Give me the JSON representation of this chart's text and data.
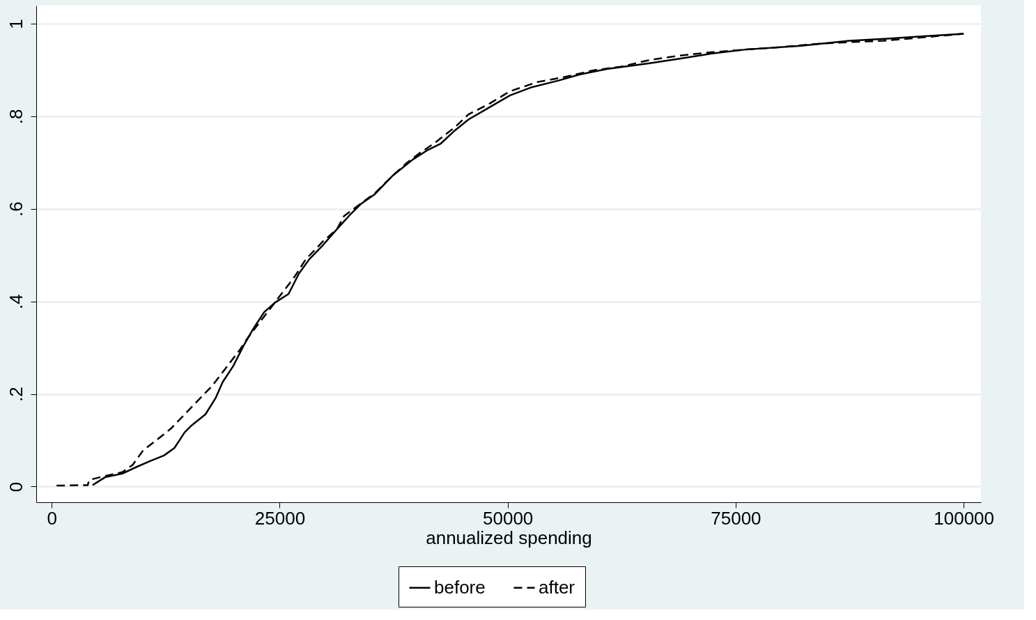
{
  "chart_data": {
    "type": "line",
    "xlabel": "annualized spending",
    "xlim": [
      -1700,
      101900
    ],
    "ylim": [
      -0.034,
      1.039
    ],
    "xticks": [
      0,
      25000,
      50000,
      75000,
      100000
    ],
    "yticks": [
      0,
      {
        "value": 0.2,
        "label": ".2"
      },
      {
        "value": 0.4,
        "label": ".4"
      },
      {
        "value": 0.6,
        "label": ".6"
      },
      {
        "value": 0.8,
        "label": ".8"
      },
      1
    ],
    "grid": "y",
    "legend": "bottom",
    "marker": "none",
    "series": [
      {
        "name": "before",
        "color": "#000000",
        "line_style": "solid",
        "x": [
          4480,
          5847,
          7745,
          9264,
          10782,
          12301,
          13440,
          14579,
          15338,
          16857,
          17996,
          18755,
          19894,
          21033,
          22172,
          23311,
          24450,
          25968,
          27107,
          28246,
          29765,
          31283,
          32802,
          33941,
          35460,
          37358,
          39636,
          41155,
          42673,
          44192,
          45710,
          47988,
          50266,
          52544,
          55581,
          57859,
          60896,
          65452,
          68489,
          72286,
          76082,
          82157,
          87472,
          91268,
          95065,
          100000
        ],
        "values": [
          0.003,
          0.02,
          0.028,
          0.042,
          0.055,
          0.067,
          0.083,
          0.117,
          0.132,
          0.156,
          0.192,
          0.226,
          0.26,
          0.304,
          0.343,
          0.377,
          0.397,
          0.416,
          0.46,
          0.491,
          0.522,
          0.556,
          0.589,
          0.611,
          0.632,
          0.671,
          0.707,
          0.726,
          0.741,
          0.769,
          0.793,
          0.819,
          0.845,
          0.862,
          0.877,
          0.89,
          0.902,
          0.914,
          0.923,
          0.935,
          0.944,
          0.952,
          0.963,
          0.967,
          0.972,
          0.978
        ]
      },
      {
        "name": "after",
        "color": "#000000",
        "line_style": "dashed",
        "x": [
          532,
          3948,
          4100,
          5847,
          7745,
          8884,
          10023,
          11541,
          13060,
          14579,
          16097,
          17616,
          19134,
          20653,
          21412,
          22931,
          24450,
          25968,
          26727,
          27866,
          29765,
          31283,
          32043,
          33941,
          35460,
          37358,
          38876,
          40395,
          41913,
          44192,
          45710,
          47988,
          50266,
          53303,
          56340,
          59377,
          62414,
          65452,
          68489,
          72286,
          76082,
          79879,
          83675,
          87472,
          91268,
          100000
        ],
        "values": [
          0.002,
          0.003,
          0.014,
          0.023,
          0.031,
          0.047,
          0.078,
          0.101,
          0.125,
          0.156,
          0.187,
          0.218,
          0.257,
          0.296,
          0.319,
          0.358,
          0.397,
          0.436,
          0.456,
          0.491,
          0.53,
          0.556,
          0.584,
          0.612,
          0.634,
          0.671,
          0.698,
          0.721,
          0.741,
          0.776,
          0.804,
          0.827,
          0.854,
          0.874,
          0.885,
          0.899,
          0.907,
          0.921,
          0.93,
          0.938,
          0.944,
          0.949,
          0.956,
          0.96,
          0.963,
          0.978
        ]
      }
    ]
  }
}
